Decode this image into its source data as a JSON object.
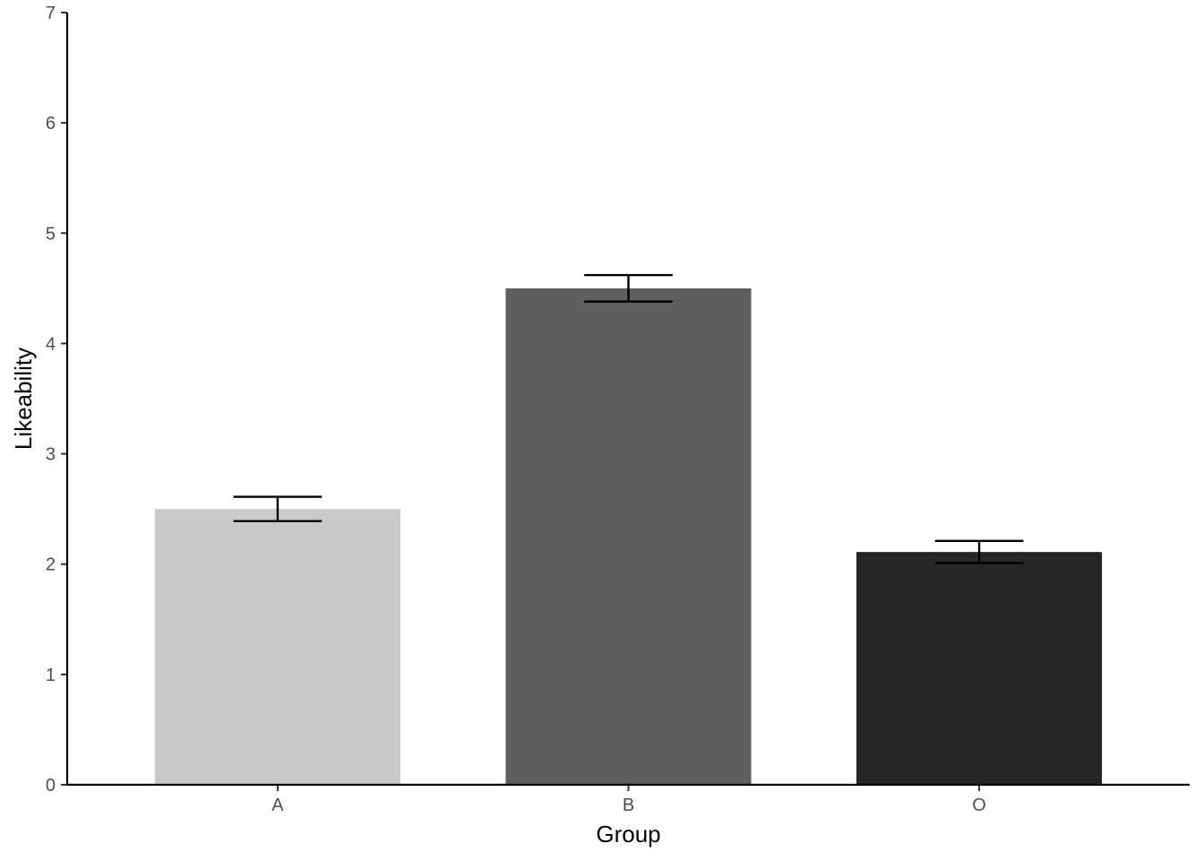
{
  "chart_data": {
    "type": "bar",
    "categories": [
      "A",
      "B",
      "O"
    ],
    "values": [
      2.5,
      4.5,
      2.11
    ],
    "error_low": [
      2.39,
      4.38,
      2.01
    ],
    "error_high": [
      2.61,
      4.62,
      2.21
    ],
    "colors": [
      "#cacaca",
      "#5f5f5f",
      "#262626"
    ],
    "xlabel": "Group",
    "ylabel": "Likeability",
    "ylim": [
      0,
      7
    ],
    "yticks": [
      0,
      1,
      2,
      3,
      4,
      5,
      6,
      7
    ],
    "grid": false,
    "legend": "none"
  }
}
